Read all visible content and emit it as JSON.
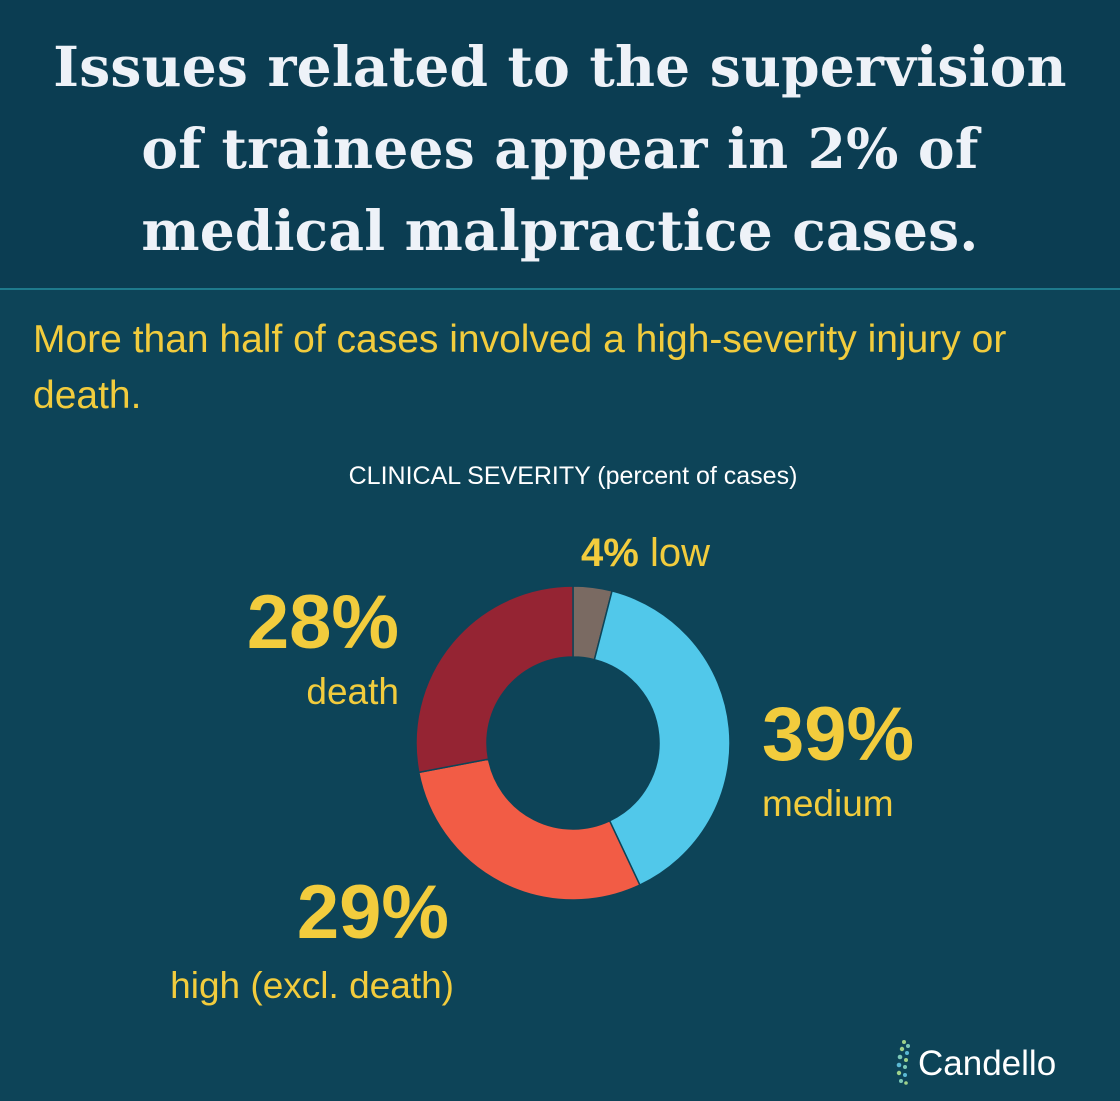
{
  "title": "Issues related to the supervision of trainees appear in 2% of medical malpractice cases.",
  "subtitle": "More than half of cases involved a high-severity injury or death.",
  "brand": "Candello",
  "colors": {
    "background": "#0d4458",
    "accent_text": "#f2cc3d",
    "low": "#7a6a62",
    "medium": "#51c8ea",
    "high": "#f25c45",
    "death": "#952433"
  },
  "chart_data": {
    "type": "pie",
    "variant": "donut",
    "title": "CLINICAL SEVERITY (percent of cases)",
    "unit": "%",
    "slices": [
      {
        "key": "low",
        "label": "low",
        "value": 4,
        "value_label": "4%"
      },
      {
        "key": "medium",
        "label": "medium",
        "value": 39,
        "value_label": "39%"
      },
      {
        "key": "high",
        "label": "high (excl. death)",
        "value": 29,
        "value_label": "29%"
      },
      {
        "key": "death",
        "label": "death",
        "value": 28,
        "value_label": "28%"
      }
    ]
  }
}
